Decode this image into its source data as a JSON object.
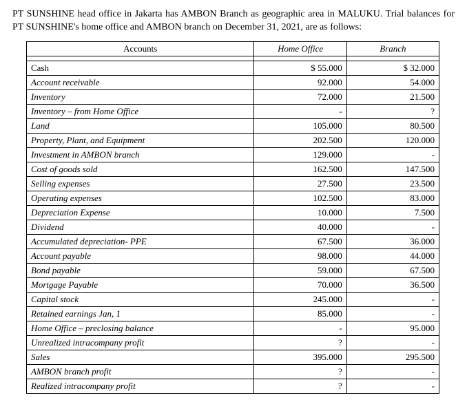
{
  "intro": "PT SUNSHINE head office in Jakarta has AMBON Branch as geographic area in MALUKU. Trial balances for PT SUNSHINE's home office and AMBON branch on December 31, 2021, are as follows:",
  "headers": {
    "accounts": "Accounts",
    "home_office": "Home Office",
    "branch": "Branch"
  },
  "rows": [
    {
      "acc": "Cash",
      "italic": false,
      "ho": "$   55.000",
      "br": "$   32.000"
    },
    {
      "acc": "Account receivable",
      "italic": true,
      "ho": "92.000",
      "br": "54.000"
    },
    {
      "acc": "Inventory",
      "italic": true,
      "ho": "72.000",
      "br": "21.500"
    },
    {
      "acc": "Inventory – from Home Office",
      "italic": true,
      "ho": "-",
      "br": "?"
    },
    {
      "acc": "Land",
      "italic": true,
      "ho": "105.000",
      "br": "80.500"
    },
    {
      "acc": "Property, Plant, and Equipment",
      "italic": true,
      "ho": "202.500",
      "br": "120.000"
    },
    {
      "acc": "Investment in AMBON branch",
      "italic": true,
      "ho": "129.000",
      "br": "-"
    },
    {
      "acc": "Cost of goods sold",
      "italic": true,
      "ho": "162.500",
      "br": "147.500"
    },
    {
      "acc": "Selling expenses",
      "italic": true,
      "ho": "27.500",
      "br": "23.500"
    },
    {
      "acc": "Operating expenses",
      "italic": true,
      "ho": "102.500",
      "br": "83.000"
    },
    {
      "acc": "Depreciation Expense",
      "italic": true,
      "ho": "10.000",
      "br": "7.500"
    },
    {
      "acc": "Dividend",
      "italic": true,
      "ho": "40.000",
      "br": "-"
    },
    {
      "acc": "Accumulated depreciation- PPE",
      "italic": true,
      "ho": "67.500",
      "br": "36.000"
    },
    {
      "acc": "Account payable",
      "italic": true,
      "ho": "98.000",
      "br": "44.000"
    },
    {
      "acc": "Bond payable",
      "italic": true,
      "ho": "59.000",
      "br": "67.500"
    },
    {
      "acc": "Mortgage Payable",
      "italic": true,
      "ho": "70.000",
      "br": "36.500"
    },
    {
      "acc": "Capital stock",
      "italic": true,
      "ho": "245.000",
      "br": "-"
    },
    {
      "acc": "Retained earnings Jan, 1",
      "italic": true,
      "ho": "85.000",
      "br": "-"
    },
    {
      "acc": "Home Office – preclosing balance",
      "italic": true,
      "ho": "-",
      "br": "95.000"
    },
    {
      "acc": "Unrealized intracompany profit",
      "italic": true,
      "ho": "?",
      "br": "-"
    },
    {
      "acc": "Sales",
      "italic": true,
      "ho": "395.000",
      "br": "295.500"
    },
    {
      "acc": "AMBON branch profit",
      "italic": true,
      "ho": "?",
      "br": "-"
    },
    {
      "acc": "Realized intracompany profit",
      "italic": true,
      "ho": "?",
      "br": "-"
    }
  ]
}
